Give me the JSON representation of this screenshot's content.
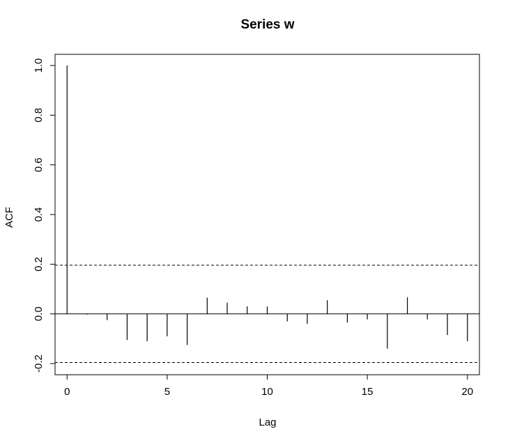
{
  "chart_data": {
    "type": "bar",
    "title": "Series  w",
    "xlabel": "Lag",
    "ylabel": "ACF",
    "x": [
      0,
      1,
      2,
      3,
      4,
      5,
      6,
      7,
      8,
      9,
      10,
      11,
      12,
      13,
      14,
      15,
      16,
      17,
      18,
      19,
      20
    ],
    "values": [
      1.0,
      -0.003,
      -0.025,
      -0.105,
      -0.11,
      -0.09,
      -0.125,
      0.065,
      0.045,
      0.03,
      0.03,
      -0.03,
      -0.04,
      0.055,
      -0.035,
      -0.022,
      -0.14,
      0.067,
      -0.022,
      -0.085,
      -0.11
    ],
    "xlim": [
      -0.6,
      20.6
    ],
    "ylim": [
      -0.245,
      1.045
    ],
    "xticks": [
      0,
      5,
      10,
      15,
      20
    ],
    "yticks": [
      -0.2,
      0.0,
      0.2,
      0.4,
      0.6,
      0.8,
      1.0
    ],
    "ytick_labels": [
      "-0.2",
      "0.0",
      "0.2",
      "0.4",
      "0.6",
      "0.8",
      "1.0"
    ],
    "confidence_bounds": [
      0.196,
      -0.196
    ],
    "colors": {
      "bars": "#000000",
      "bounds": "#000000",
      "axes": "#000000"
    },
    "grid": false
  }
}
